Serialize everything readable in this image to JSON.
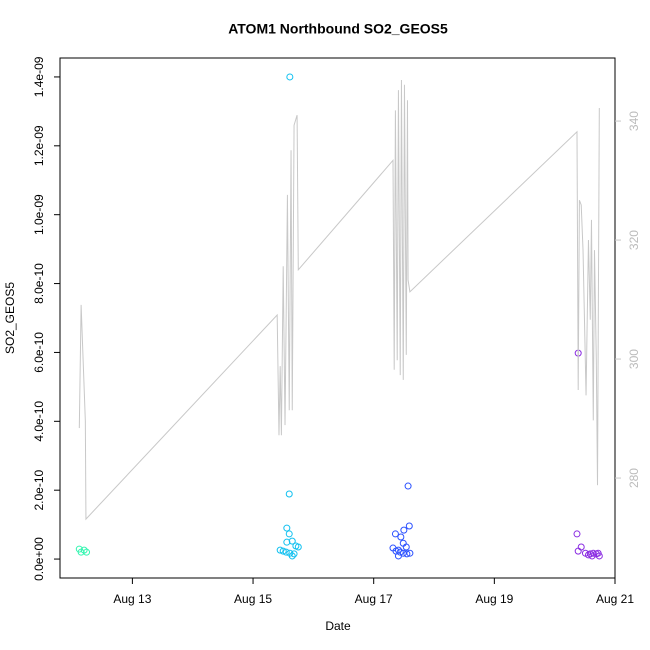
{
  "chart_data": {
    "type": "scatter",
    "title": "ATOM1 Northbound SO2_GEOS5",
    "x_label": "Date",
    "y_label": "SO2_GEOS5",
    "xlim": [
      11.8,
      21.0
    ],
    "xticks": [
      {
        "value": 13,
        "label": "Aug 13"
      },
      {
        "value": 15,
        "label": "Aug 15"
      },
      {
        "value": 17,
        "label": "Aug 17"
      },
      {
        "value": 19,
        "label": "Aug 19"
      },
      {
        "value": 21,
        "label": "Aug 21"
      }
    ],
    "ylim": [
      -5.5e-11,
      1.455e-09
    ],
    "yticks": [
      {
        "value": 0,
        "label": "0.0e+00"
      },
      {
        "value": 2e-10,
        "label": "2.0e-10"
      },
      {
        "value": 4e-10,
        "label": "4.0e-10"
      },
      {
        "value": 6e-10,
        "label": "6.0e-10"
      },
      {
        "value": 8e-10,
        "label": "8.0e-10"
      },
      {
        "value": 1e-09,
        "label": "1.0e-09"
      },
      {
        "value": 1.2e-09,
        "label": "1.2e-09"
      },
      {
        "value": 1.4e-09,
        "label": "1.4e-09"
      }
    ],
    "y2lim": [
      263.2,
      350.6
    ],
    "y2ticks": [
      280,
      300,
      320,
      340
    ],
    "y2_color": "#c8c8c8",
    "series": [
      {
        "color": "#33f5b0",
        "x": [
          12.12,
          12.15,
          12.2,
          12.24
        ],
        "values": [
          2.9e-11,
          2e-11,
          2.6e-11,
          2e-11
        ]
      },
      {
        "color": "#10c0f0",
        "x": [
          15.61,
          15.6,
          15.56,
          15.6,
          15.65,
          15.56,
          15.71,
          15.75,
          15.45,
          15.5,
          15.55,
          15.61,
          15.68,
          15.65
        ],
        "values": [
          1.4e-09,
          1.89e-10,
          9e-11,
          7.3e-11,
          5.2e-11,
          4.9e-11,
          3.8e-11,
          3.5e-11,
          2.6e-11,
          2.3e-11,
          2e-11,
          1.7e-11,
          1.5e-11,
          9e-12
        ]
      },
      {
        "color": "#2a50ff",
        "x": [
          17.57,
          17.59,
          17.5,
          17.36,
          17.45,
          17.49,
          17.54,
          17.32,
          17.41,
          17.37,
          17.44,
          17.49,
          17.55,
          17.6,
          17.41
        ],
        "values": [
          2.12e-10,
          9.6e-11,
          8.4e-11,
          7.3e-11,
          6.4e-11,
          4.6e-11,
          3.5e-11,
          3.2e-11,
          2.6e-11,
          2.3e-11,
          2e-11,
          1.7e-11,
          1.5e-11,
          1.7e-11,
          9e-12
        ]
      },
      {
        "color": "#8a2be2",
        "x": [
          20.39,
          20.37,
          20.44,
          20.39,
          20.51,
          20.56,
          20.59,
          20.64,
          20.69,
          20.72,
          20.62,
          20.74
        ],
        "values": [
          5.98e-10,
          7.3e-11,
          3.5e-11,
          2.3e-11,
          1.7e-11,
          1.2e-11,
          1.5e-11,
          1.7e-11,
          1.5e-11,
          1.7e-11,
          9e-12,
          9e-12
        ]
      },
      {
        "type": "line",
        "axis": "y2",
        "color": "#c8c8c8",
        "x": [
          12.12,
          12.15,
          12.22,
          12.23,
          15.4,
          15.43,
          15.45,
          15.47,
          15.5,
          15.53,
          15.57,
          15.6,
          15.63,
          15.65,
          15.68,
          15.73,
          15.75,
          17.32,
          17.34,
          17.36,
          17.39,
          17.41,
          17.44,
          17.46,
          17.49,
          17.51,
          17.54,
          17.56,
          17.57,
          17.6,
          20.37,
          20.39,
          20.41,
          20.44,
          20.47,
          20.52,
          20.56,
          20.59,
          20.61,
          20.64,
          20.66,
          20.69,
          20.71,
          20.74
        ],
        "values": [
          288.4,
          309.1,
          289.6,
          273.1,
          307.4,
          287.2,
          298.8,
          287.2,
          315.6,
          288.9,
          327.6,
          291.4,
          335.1,
          291.4,
          339.3,
          341.0,
          315.0,
          333.4,
          298.2,
          341.8,
          299.8,
          345.2,
          297.3,
          346.9,
          296.5,
          346.1,
          300.7,
          343.5,
          313.3,
          311.3,
          338.2,
          294.8,
          326.7,
          325.9,
          318.3,
          293.9,
          320.0,
          306.6,
          323.4,
          289.7,
          318.3,
          300.0,
          278.8,
          342.2
        ]
      }
    ]
  }
}
